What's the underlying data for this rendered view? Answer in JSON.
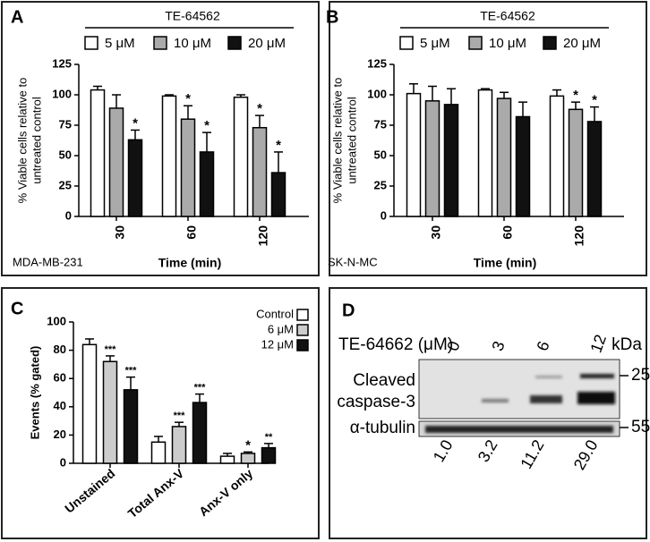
{
  "chart_data": [
    {
      "type": "bar",
      "panel": "A",
      "title": "TE-64562",
      "note": "MDA-MB-231",
      "xlabel": "Time (min)",
      "ylabel": [
        "% Viable cells relative to",
        "untreated control"
      ],
      "categories": [
        "30",
        "60",
        "120"
      ],
      "ylim": [
        0,
        125
      ],
      "yticks": [
        0,
        25,
        50,
        75,
        100,
        125
      ],
      "series": [
        {
          "name": "5 μM",
          "color": "#ffffff",
          "values": [
            104,
            99,
            98
          ],
          "errors": [
            3,
            1,
            2
          ],
          "significance": [
            null,
            null,
            null
          ]
        },
        {
          "name": "10 μM",
          "color": "#aaaaaa",
          "values": [
            89,
            80,
            73
          ],
          "errors": [
            11,
            11,
            10
          ],
          "significance": [
            null,
            "*",
            "*"
          ]
        },
        {
          "name": "20 μM",
          "color": "#111111",
          "values": [
            63,
            53,
            36
          ],
          "errors": [
            8,
            16,
            17
          ],
          "significance": [
            "*",
            "*",
            "*"
          ]
        }
      ]
    },
    {
      "type": "bar",
      "panel": "B",
      "title": "TE-64562",
      "note": "SK-N-MC",
      "xlabel": "Time (min)",
      "ylabel": [
        "% Viable cells relative to",
        "untreated control"
      ],
      "categories": [
        "30",
        "60",
        "120"
      ],
      "ylim": [
        0,
        125
      ],
      "yticks": [
        0,
        25,
        50,
        75,
        100,
        125
      ],
      "series": [
        {
          "name": "5 μM",
          "color": "#ffffff",
          "values": [
            101,
            104,
            99
          ],
          "errors": [
            8,
            1,
            5
          ],
          "significance": [
            null,
            null,
            null
          ]
        },
        {
          "name": "10 μM",
          "color": "#aaaaaa",
          "values": [
            95,
            97,
            88
          ],
          "errors": [
            12,
            5,
            6
          ],
          "significance": [
            null,
            null,
            "*"
          ]
        },
        {
          "name": "20 μM",
          "color": "#111111",
          "values": [
            92,
            82,
            78
          ],
          "errors": [
            13,
            12,
            12
          ],
          "significance": [
            null,
            null,
            "*"
          ]
        }
      ]
    },
    {
      "type": "bar",
      "panel": "C",
      "ylabel": [
        "Events (% gated)"
      ],
      "categories": [
        "Unstained",
        "Total Anx-V",
        "Anx-V only"
      ],
      "ylim": [
        0,
        100
      ],
      "yticks": [
        0,
        20,
        40,
        60,
        80,
        100
      ],
      "series": [
        {
          "name": "Control",
          "color": "#ffffff",
          "values": [
            84,
            15,
            5
          ],
          "errors": [
            4,
            4,
            2
          ],
          "significance": [
            null,
            null,
            null
          ]
        },
        {
          "name": "6 μM",
          "color": "#cccccc",
          "values": [
            72,
            26,
            7
          ],
          "errors": [
            4,
            3,
            1
          ],
          "significance": [
            "***",
            "***",
            "*"
          ]
        },
        {
          "name": "12 μM",
          "color": "#111111",
          "values": [
            52,
            43,
            11
          ],
          "errors": [
            9,
            6,
            3
          ],
          "significance": [
            "***",
            "***",
            "**"
          ]
        }
      ]
    }
  ],
  "blot": {
    "panel": "D",
    "treatment_label": "TE-64662 (μM)",
    "lanes": [
      "0",
      "3",
      "6",
      "12"
    ],
    "unit_label": "kDa",
    "markers": [
      "25",
      "55"
    ],
    "rows": [
      [
        "Cleaved",
        "caspase-3"
      ],
      [
        "α-tubulin"
      ]
    ],
    "quantification": [
      "1.0",
      "3.2",
      "11.2",
      "29.0"
    ]
  }
}
